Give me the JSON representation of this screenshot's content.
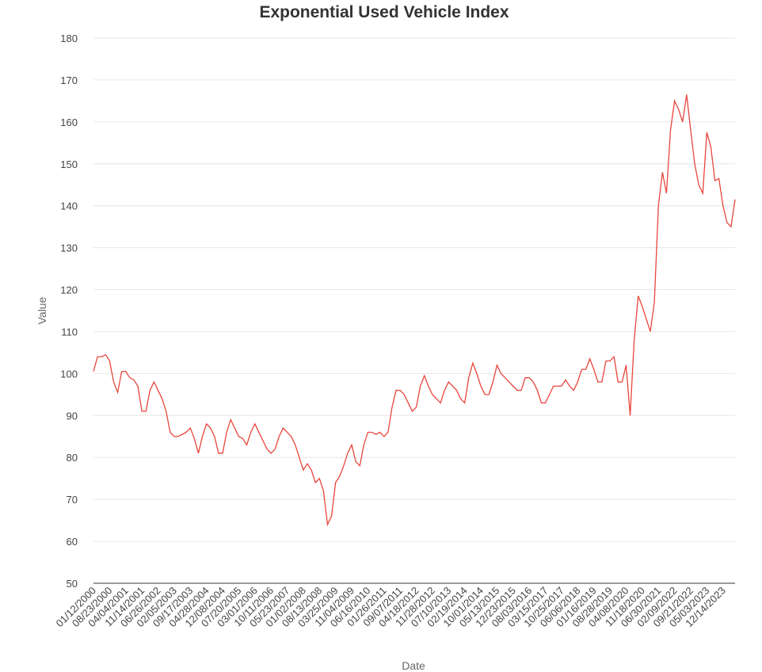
{
  "chart_data": {
    "type": "line",
    "title": "Exponential Used Vehicle Index",
    "x_label": "Date",
    "y_label": "Value",
    "categories": [
      "01/12/2000",
      null,
      null,
      null,
      "08/23/2000",
      null,
      null,
      null,
      "04/04/2001",
      null,
      null,
      null,
      "11/14/2001",
      null,
      null,
      null,
      "06/26/2002",
      null,
      null,
      null,
      "02/05/2003",
      null,
      null,
      null,
      "09/17/2003",
      null,
      null,
      null,
      "04/28/2004",
      null,
      null,
      null,
      "12/08/2004",
      null,
      null,
      null,
      "07/20/2005",
      null,
      null,
      null,
      "03/01/2006",
      null,
      null,
      null,
      "10/11/2006",
      null,
      null,
      null,
      "05/23/2007",
      null,
      null,
      null,
      "01/02/2008",
      null,
      null,
      null,
      "08/13/2008",
      null,
      null,
      null,
      "03/25/2009",
      null,
      null,
      null,
      "11/04/2009",
      null,
      null,
      null,
      "06/16/2010",
      null,
      null,
      null,
      "01/26/2011",
      null,
      null,
      null,
      "09/07/2011",
      null,
      null,
      null,
      "04/18/2012",
      null,
      null,
      null,
      "11/28/2012",
      null,
      null,
      null,
      "07/10/2013",
      null,
      null,
      null,
      "02/19/2014",
      null,
      null,
      null,
      "10/01/2014",
      null,
      null,
      null,
      "05/13/2015",
      null,
      null,
      null,
      "12/23/2015",
      null,
      null,
      null,
      "08/03/2016",
      null,
      null,
      null,
      "03/15/2017",
      null,
      null,
      null,
      "10/25/2017",
      null,
      null,
      null,
      "06/06/2018",
      null,
      null,
      null,
      "01/16/2019",
      null,
      null,
      null,
      "08/28/2019",
      null,
      null,
      null,
      "04/08/2020",
      null,
      null,
      null,
      "11/18/2020",
      null,
      null,
      null,
      "06/30/2021",
      null,
      null,
      null,
      "02/09/2022",
      null,
      null,
      null,
      "09/21/2022",
      null,
      null,
      null,
      "05/03/2023",
      null,
      null,
      null,
      "12/14/2023",
      null,
      null,
      null
    ],
    "series": [
      {
        "name": "Value",
        "color": "#e8453c",
        "values": [
          100.5,
          104,
          104,
          104.5,
          103,
          98,
          95.5,
          100.5,
          100.5,
          99,
          98.5,
          97,
          91,
          91,
          96,
          98,
          96,
          94,
          91,
          86,
          85,
          85,
          85.5,
          86,
          87,
          84.5,
          81,
          85,
          88,
          87,
          85,
          81,
          81,
          86,
          89,
          87,
          85,
          84.5,
          83,
          86,
          88,
          86,
          84,
          82,
          81,
          82,
          85,
          87,
          86,
          85,
          83,
          80,
          77,
          78.5,
          77,
          74,
          75,
          72,
          64,
          66,
          74,
          75.5,
          78,
          81,
          83,
          79,
          78,
          83,
          86,
          86,
          85.5,
          86,
          85,
          86,
          92,
          96,
          96,
          95,
          93,
          91,
          92,
          97,
          99.5,
          97,
          95,
          94,
          93,
          96,
          98,
          97,
          96,
          94,
          93,
          99,
          102.5,
          100,
          97,
          95,
          95,
          98,
          102,
          100,
          99,
          98,
          97,
          96,
          96,
          99,
          99,
          98,
          96,
          93,
          93,
          95,
          97,
          97,
          97,
          98.5,
          97,
          96,
          98,
          101,
          101,
          103.5,
          101,
          98,
          98,
          103,
          103,
          104,
          98,
          98,
          102,
          90,
          108,
          118.5,
          116,
          113,
          110,
          117,
          140,
          148,
          143,
          158,
          165,
          163,
          160,
          166.5,
          158,
          150,
          145,
          143,
          157.5,
          154,
          146,
          146.5,
          140,
          136,
          135,
          141.5
        ]
      }
    ],
    "ylim": [
      50,
      180
    ],
    "yticks": [
      50,
      60,
      70,
      80,
      90,
      100,
      110,
      120,
      130,
      140,
      150,
      160,
      170,
      180
    ],
    "grid": true
  }
}
